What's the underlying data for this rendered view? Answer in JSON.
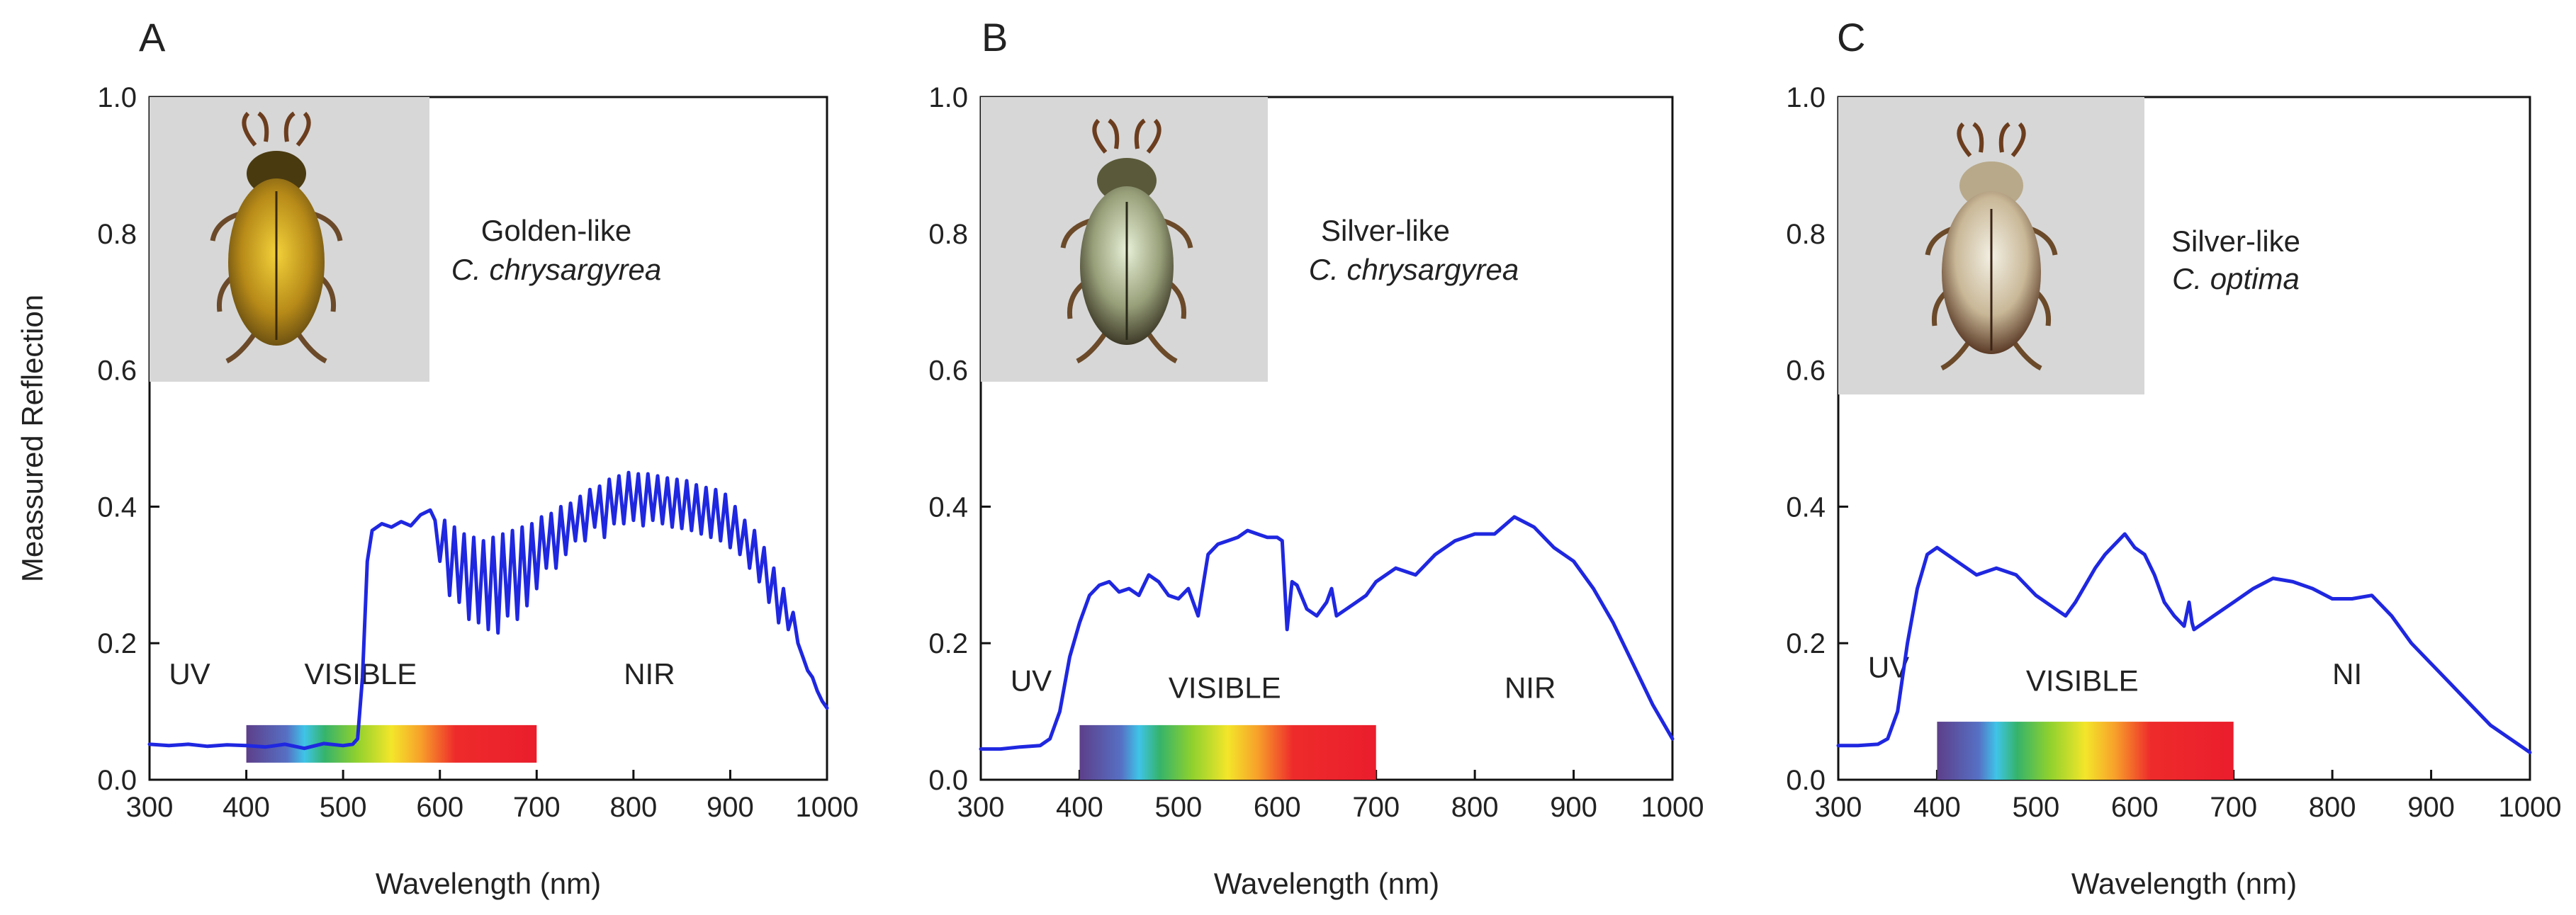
{
  "chart_data": [
    {
      "type": "line",
      "panel": "A",
      "title": "",
      "xlabel": "Wavelength (nm)",
      "ylabel": "Meassured Reflection",
      "xlim": [
        300,
        1000
      ],
      "ylim": [
        0.0,
        1.0
      ],
      "xticks": [
        300,
        400,
        500,
        600,
        700,
        800,
        900,
        1000
      ],
      "yticks": [
        0.0,
        0.2,
        0.4,
        0.6,
        0.8,
        1.0
      ],
      "xtick_labels": [
        "300",
        "400",
        "500",
        "600",
        "700",
        "800",
        "900",
        "1000"
      ],
      "ytick_labels": [
        "0.0",
        "0.2",
        "0.4",
        "0.6",
        "0.8",
        "1.0"
      ],
      "inset_photo": "golden-like beetle",
      "species_label": [
        "Golden-like",
        "C. chrysargyrea"
      ],
      "regions": [
        {
          "label": "UV",
          "x": 320,
          "y": 0.14
        },
        {
          "label": "VISIBLE",
          "x": 460,
          "y": 0.14
        },
        {
          "label": "NIR",
          "x": 790,
          "y": 0.14
        }
      ],
      "spectrum_bar": {
        "x_start": 400,
        "x_end": 700,
        "y_bottom": 0.025,
        "y_top": 0.08
      },
      "series": [
        {
          "name": "Reflection",
          "x": [
            300,
            320,
            340,
            360,
            380,
            400,
            420,
            440,
            460,
            480,
            500,
            510,
            515,
            520,
            525,
            530,
            540,
            550,
            560,
            570,
            580,
            590,
            595,
            600,
            605,
            610,
            615,
            620,
            625,
            630,
            635,
            640,
            645,
            650,
            655,
            660,
            665,
            670,
            675,
            680,
            685,
            690,
            695,
            700,
            705,
            710,
            715,
            720,
            725,
            730,
            735,
            740,
            745,
            750,
            755,
            760,
            765,
            770,
            775,
            780,
            785,
            790,
            795,
            800,
            805,
            810,
            815,
            820,
            825,
            830,
            835,
            840,
            845,
            850,
            855,
            860,
            865,
            870,
            875,
            880,
            885,
            890,
            895,
            900,
            905,
            910,
            915,
            920,
            925,
            930,
            935,
            940,
            945,
            950,
            955,
            960,
            965,
            970,
            975,
            980,
            985,
            990,
            995,
            1000
          ],
          "y": [
            0.052,
            0.05,
            0.052,
            0.049,
            0.051,
            0.05,
            0.048,
            0.052,
            0.046,
            0.053,
            0.05,
            0.052,
            0.06,
            0.15,
            0.32,
            0.365,
            0.375,
            0.37,
            0.378,
            0.372,
            0.388,
            0.395,
            0.38,
            0.32,
            0.38,
            0.27,
            0.37,
            0.26,
            0.36,
            0.235,
            0.355,
            0.23,
            0.35,
            0.22,
            0.355,
            0.215,
            0.36,
            0.24,
            0.365,
            0.235,
            0.37,
            0.255,
            0.375,
            0.28,
            0.385,
            0.31,
            0.39,
            0.31,
            0.4,
            0.33,
            0.405,
            0.35,
            0.415,
            0.35,
            0.425,
            0.37,
            0.43,
            0.355,
            0.44,
            0.375,
            0.445,
            0.375,
            0.45,
            0.38,
            0.448,
            0.372,
            0.448,
            0.38,
            0.445,
            0.375,
            0.442,
            0.37,
            0.44,
            0.368,
            0.438,
            0.365,
            0.432,
            0.36,
            0.428,
            0.355,
            0.425,
            0.35,
            0.418,
            0.34,
            0.4,
            0.33,
            0.38,
            0.31,
            0.365,
            0.29,
            0.34,
            0.26,
            0.31,
            0.23,
            0.28,
            0.22,
            0.245,
            0.2,
            0.18,
            0.16,
            0.15,
            0.13,
            0.115,
            0.105
          ]
        }
      ]
    },
    {
      "type": "line",
      "panel": "B",
      "title": "",
      "xlabel": "Wavelength (nm)",
      "ylabel": "",
      "xlim": [
        300,
        1000
      ],
      "ylim": [
        0.0,
        1.0
      ],
      "xticks": [
        300,
        400,
        500,
        600,
        700,
        800,
        900,
        1000
      ],
      "yticks": [
        0.0,
        0.2,
        0.4,
        0.6,
        0.8,
        1.0
      ],
      "xtick_labels": [
        "300",
        "400",
        "500",
        "600",
        "700",
        "800",
        "900",
        "1000"
      ],
      "ytick_labels": [
        "0.0",
        "0.2",
        "0.4",
        "0.6",
        "0.8",
        "1.0"
      ],
      "inset_photo": "silver-like beetle",
      "species_label": [
        "Silver-like",
        "C. chrysargyrea"
      ],
      "regions": [
        {
          "label": "UV",
          "x": 330,
          "y": 0.13
        },
        {
          "label": "VISIBLE",
          "x": 490,
          "y": 0.12
        },
        {
          "label": "NIR",
          "x": 830,
          "y": 0.12
        }
      ],
      "spectrum_bar": {
        "x_start": 400,
        "x_end": 700,
        "y_bottom": 0.0,
        "y_top": 0.08
      },
      "series": [
        {
          "name": "Reflection",
          "x": [
            300,
            320,
            340,
            360,
            370,
            380,
            390,
            400,
            410,
            420,
            430,
            440,
            450,
            460,
            470,
            480,
            490,
            500,
            510,
            520,
            530,
            540,
            550,
            560,
            570,
            580,
            590,
            600,
            605,
            610,
            615,
            620,
            630,
            640,
            650,
            655,
            660,
            670,
            680,
            690,
            700,
            720,
            740,
            760,
            780,
            800,
            820,
            840,
            860,
            880,
            900,
            920,
            940,
            960,
            980,
            1000
          ],
          "y": [
            0.045,
            0.045,
            0.048,
            0.05,
            0.06,
            0.1,
            0.18,
            0.23,
            0.27,
            0.285,
            0.29,
            0.275,
            0.28,
            0.27,
            0.3,
            0.29,
            0.27,
            0.265,
            0.28,
            0.24,
            0.33,
            0.345,
            0.35,
            0.355,
            0.365,
            0.36,
            0.355,
            0.355,
            0.35,
            0.22,
            0.29,
            0.285,
            0.25,
            0.24,
            0.26,
            0.28,
            0.24,
            0.25,
            0.26,
            0.27,
            0.29,
            0.31,
            0.3,
            0.33,
            0.35,
            0.36,
            0.36,
            0.385,
            0.37,
            0.34,
            0.32,
            0.28,
            0.23,
            0.17,
            0.11,
            0.06
          ]
        }
      ]
    },
    {
      "type": "line",
      "panel": "C",
      "title": "",
      "xlabel": "Wavelength (nm)",
      "ylabel": "",
      "xlim": [
        300,
        1000
      ],
      "ylim": [
        0.0,
        1.0
      ],
      "xticks": [
        300,
        400,
        500,
        600,
        700,
        800,
        900,
        1000
      ],
      "yticks": [
        0.0,
        0.2,
        0.4,
        0.6,
        0.8,
        1.0
      ],
      "xtick_labels": [
        "300",
        "400",
        "500",
        "600",
        "700",
        "800",
        "900",
        "1000"
      ],
      "ytick_labels": [
        "0.0",
        "0.2",
        "0.4",
        "0.6",
        "0.8",
        "1.0"
      ],
      "inset_photo": "silver-like beetle optima",
      "species_label": [
        "Silver-like",
        "C. optima"
      ],
      "regions": [
        {
          "label": "UV",
          "x": 330,
          "y": 0.15
        },
        {
          "label": "VISIBLE",
          "x": 490,
          "y": 0.13
        },
        {
          "label": "NI",
          "x": 800,
          "y": 0.14
        }
      ],
      "spectrum_bar": {
        "x_start": 400,
        "x_end": 700,
        "y_bottom": 0.0,
        "y_top": 0.085
      },
      "series": [
        {
          "name": "Reflection",
          "x": [
            300,
            320,
            340,
            350,
            360,
            370,
            380,
            390,
            400,
            420,
            440,
            460,
            480,
            500,
            520,
            530,
            540,
            560,
            570,
            580,
            590,
            600,
            610,
            620,
            630,
            640,
            650,
            655,
            658,
            660,
            665,
            670,
            680,
            700,
            720,
            740,
            760,
            780,
            800,
            820,
            840,
            860,
            880,
            900,
            920,
            940,
            960,
            980,
            1000
          ],
          "y": [
            0.05,
            0.05,
            0.052,
            0.06,
            0.1,
            0.2,
            0.28,
            0.33,
            0.34,
            0.32,
            0.3,
            0.31,
            0.3,
            0.27,
            0.25,
            0.24,
            0.26,
            0.31,
            0.33,
            0.345,
            0.36,
            0.34,
            0.33,
            0.3,
            0.26,
            0.24,
            0.225,
            0.26,
            0.23,
            0.22,
            0.225,
            0.23,
            0.24,
            0.26,
            0.28,
            0.295,
            0.29,
            0.28,
            0.265,
            0.265,
            0.27,
            0.24,
            0.2,
            0.17,
            0.14,
            0.11,
            0.08,
            0.06,
            0.04
          ]
        }
      ]
    }
  ]
}
